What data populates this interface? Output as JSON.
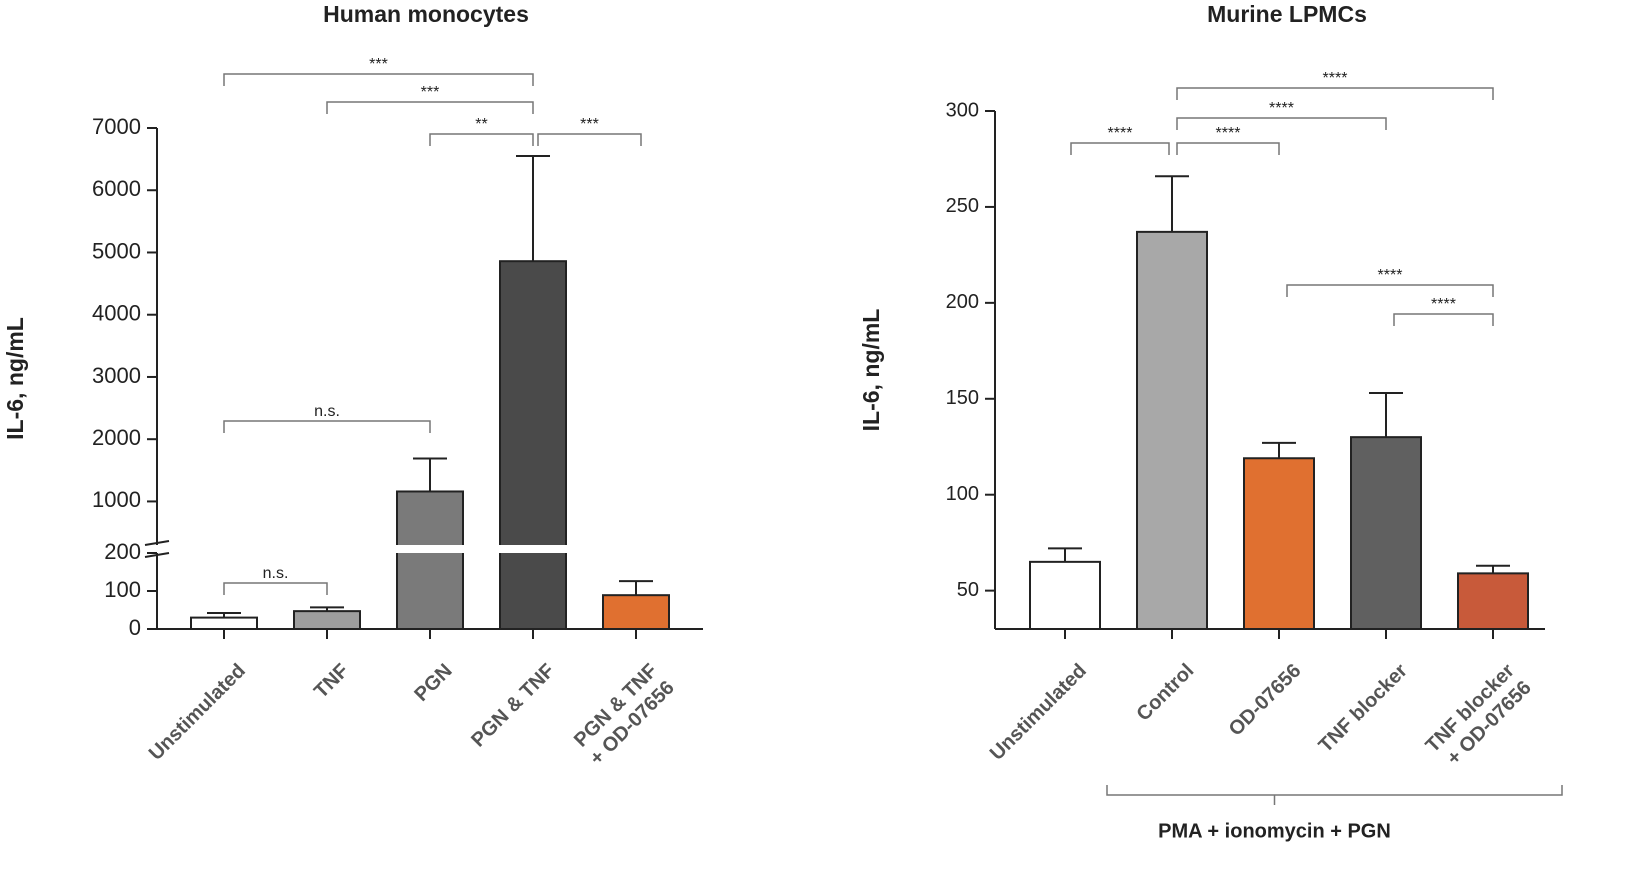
{
  "chart_data": [
    {
      "type": "bar",
      "title": "Human monocytes",
      "y_label": "IL-6, ng/mL",
      "categories": [
        "Unstimulated",
        "TNF",
        "PGN",
        "PGN & TNF",
        "PGN & TNF\n+ OD-07656"
      ],
      "values": [
        30,
        47,
        1160,
        4860,
        89
      ],
      "errors": [
        12,
        10,
        530,
        1690,
        37
      ],
      "colors": [
        "#ffffff",
        "#9e9e9e",
        "#7a7a7a",
        "#4a4a4a",
        "#e07030"
      ],
      "y_segments": [
        {
          "ylim": [
            0,
            200
          ],
          "yticks": [
            0,
            100,
            200
          ]
        },
        {
          "ylim": [
            300,
            7000
          ],
          "yticks": [
            1000,
            2000,
            3000,
            4000,
            5000,
            6000,
            7000
          ]
        }
      ],
      "comparisons": [
        {
          "label": "***",
          "between": [
            0,
            3
          ]
        },
        {
          "label": "***",
          "between": [
            1,
            3
          ]
        },
        {
          "label": "**",
          "between": [
            2,
            3
          ]
        },
        {
          "label": "***",
          "between": [
            3,
            4
          ]
        },
        {
          "label": "n.s.",
          "between": [
            0,
            2
          ]
        },
        {
          "label": "n.s.",
          "between": [
            0,
            1
          ]
        }
      ]
    },
    {
      "type": "bar",
      "title": "Murine LPMCs",
      "y_label": "IL-6, ng/mL",
      "categories": [
        "Unstimulated",
        "Control",
        "OD-07656",
        "TNF blocker",
        "TNF blocker\n+ OD-07656"
      ],
      "values": [
        65,
        237,
        119,
        130,
        59
      ],
      "errors": [
        7,
        29,
        8,
        23,
        4
      ],
      "colors": [
        "#ffffff",
        "#a8a8a8",
        "#e07030",
        "#606060",
        "#c85a3a"
      ],
      "ylim": [
        30,
        300
      ],
      "yticks": [
        50,
        100,
        150,
        200,
        250,
        300
      ],
      "comparisons": [
        {
          "label": "****",
          "between": [
            1,
            4
          ]
        },
        {
          "label": "****",
          "between": [
            1,
            3
          ]
        },
        {
          "label": "****",
          "between": [
            1,
            2
          ]
        },
        {
          "label": "****",
          "between": [
            0,
            1
          ]
        },
        {
          "label": "****",
          "between": [
            2,
            4
          ]
        },
        {
          "label": "****",
          "between": [
            3,
            4
          ]
        }
      ],
      "group_label": {
        "text": "PMA + ionomycin + PGN",
        "between": [
          1,
          4
        ]
      }
    }
  ]
}
